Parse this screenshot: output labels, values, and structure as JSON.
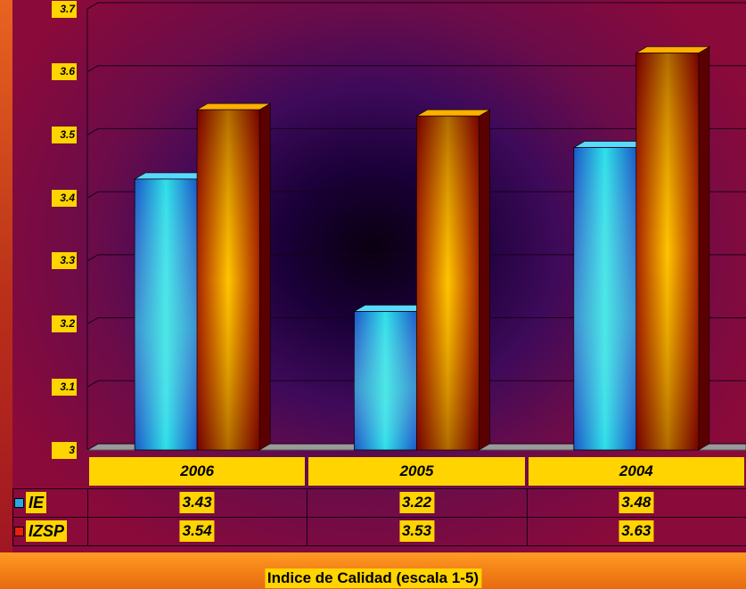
{
  "chart_data": {
    "type": "bar",
    "categories": [
      "2006",
      "2005",
      "2004"
    ],
    "series": [
      {
        "name": "IE",
        "values": [
          3.43,
          3.22,
          3.48
        ],
        "color": "#29a8e8"
      },
      {
        "name": "IZSP",
        "values": [
          3.54,
          3.53,
          3.63
        ],
        "color": "#e8200c"
      }
    ],
    "ylim": [
      3,
      3.7
    ],
    "yticks": [
      "3",
      "3.1",
      "3.2",
      "3.3",
      "3.4",
      "3.5",
      "3.6",
      "3.7"
    ],
    "xlabel": "Indice de Calidad (escala 1-5)",
    "grid": true,
    "legend": "data-table"
  },
  "colors": {
    "label_bg": "#ffd400",
    "ie_bar": "#29a8e8",
    "izsp_bar": "#e8200c"
  }
}
